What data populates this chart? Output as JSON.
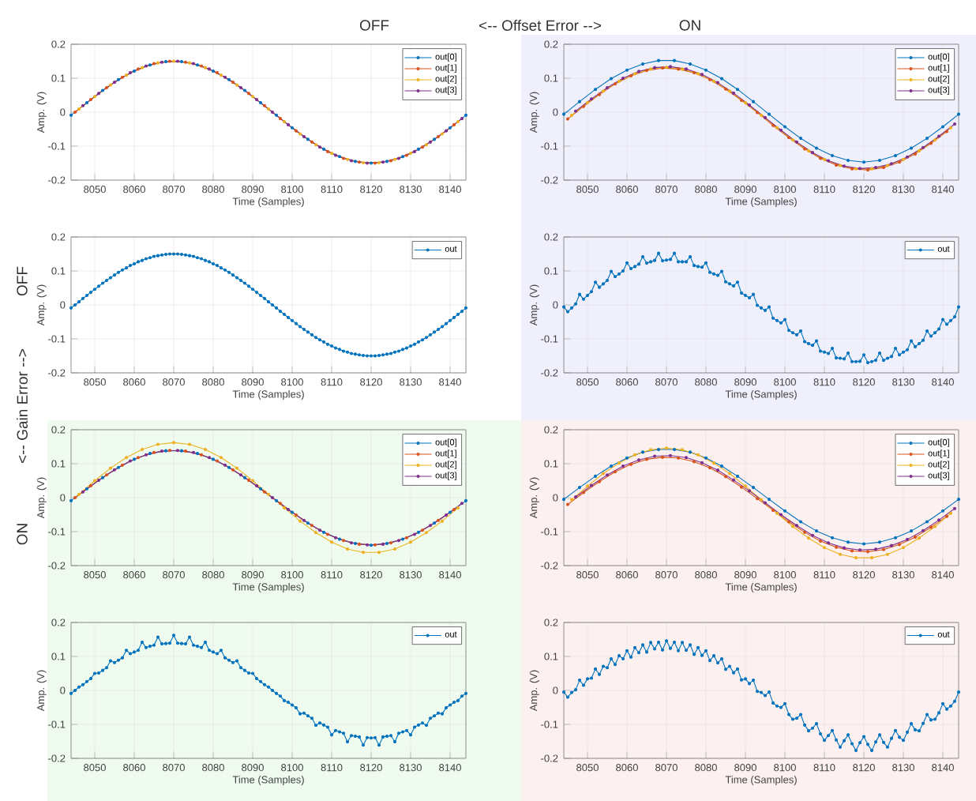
{
  "chart_data": [
    {
      "type": "line",
      "xlabel": "Time (Samples)",
      "ylabel": "Amp. (V)",
      "xlim": [
        8044,
        8144
      ],
      "ylim": [
        -0.2,
        0.2
      ],
      "xticks": [
        8050,
        8060,
        8070,
        8080,
        8090,
        8100,
        8110,
        8120,
        8130,
        8140
      ],
      "yticks": [
        -0.2,
        -0.1,
        0,
        0.1,
        0.2
      ],
      "grid": true,
      "legend": "top right",
      "marker": "circle",
      "annotations": [
        "OFF",
        "<--   Offset Error   -->",
        "ON",
        "OFF",
        "<--   Gain Error   -->",
        "ON"
      ],
      "series": [
        {
          "name": "out[0]",
          "color": "#0072bd",
          "x": [
            8044,
            8048,
            8052,
            8056,
            8060,
            8064,
            8068,
            8072,
            8076,
            8080,
            8084,
            8088,
            8092,
            8096,
            8100,
            8104,
            8108,
            8112,
            8116,
            8120,
            8124,
            8128,
            8132,
            8136,
            8140,
            8144
          ],
          "values": [
            -0.009,
            0.028,
            0.064,
            0.096,
            0.121,
            0.139,
            0.149,
            0.149,
            0.139,
            0.121,
            0.096,
            0.064,
            0.028,
            -0.009,
            -0.046,
            -0.08,
            -0.109,
            -0.131,
            -0.145,
            -0.15,
            -0.145,
            -0.131,
            -0.109,
            -0.08,
            -0.046,
            -0.009
          ]
        },
        {
          "name": "out[1]",
          "color": "#d95319",
          "x": [
            8045,
            8049,
            8053,
            8057,
            8061,
            8065,
            8069,
            8073,
            8077,
            8081,
            8085,
            8089,
            8093,
            8097,
            8101,
            8105,
            8109,
            8113,
            8117,
            8121,
            8125,
            8129,
            8133,
            8137,
            8141
          ],
          "values": [
            0,
            0.037,
            0.072,
            0.103,
            0.127,
            0.143,
            0.15,
            0.147,
            0.136,
            0.116,
            0.088,
            0.055,
            0.019,
            -0.019,
            -0.055,
            -0.088,
            -0.116,
            -0.136,
            -0.147,
            -0.15,
            -0.143,
            -0.127,
            -0.103,
            -0.072,
            -0.037
          ]
        },
        {
          "name": "out[2]",
          "color": "#edb120",
          "x": [
            8046,
            8050,
            8054,
            8058,
            8062,
            8066,
            8070,
            8074,
            8078,
            8082,
            8086,
            8090,
            8094,
            8098,
            8102,
            8106,
            8110,
            8114,
            8118,
            8122,
            8126,
            8130,
            8134,
            8138,
            8142
          ],
          "values": [
            0.009,
            0.046,
            0.08,
            0.109,
            0.131,
            0.145,
            0.15,
            0.145,
            0.131,
            0.109,
            0.08,
            0.046,
            0.009,
            -0.028,
            -0.064,
            -0.096,
            -0.121,
            -0.139,
            -0.149,
            -0.149,
            -0.139,
            -0.121,
            -0.096,
            -0.064,
            -0.028
          ]
        },
        {
          "name": "out[3]",
          "color": "#7e2f8e",
          "x": [
            8047,
            8051,
            8055,
            8059,
            8063,
            8067,
            8071,
            8075,
            8079,
            8083,
            8087,
            8091,
            8095,
            8099,
            8103,
            8107,
            8111,
            8115,
            8119,
            8123,
            8127,
            8131,
            8135,
            8139,
            8143
          ],
          "values": [
            0.019,
            0.055,
            0.088,
            0.116,
            0.136,
            0.147,
            0.15,
            0.143,
            0.127,
            0.103,
            0.072,
            0.037,
            0,
            -0.037,
            -0.072,
            -0.103,
            -0.127,
            -0.143,
            -0.15,
            -0.147,
            -0.136,
            -0.116,
            -0.088,
            -0.055,
            -0.019
          ]
        }
      ]
    },
    {
      "type": "line",
      "xlabel": "Time (Samples)",
      "ylabel": "Amp. (V)",
      "xlim": [
        8044,
        8144
      ],
      "ylim": [
        -0.2,
        0.2
      ],
      "xticks": [
        8050,
        8060,
        8070,
        8080,
        8090,
        8100,
        8110,
        8120,
        8130,
        8140
      ],
      "yticks": [
        -0.2,
        -0.1,
        0,
        0.1,
        0.2
      ],
      "grid": true,
      "legend": "top right",
      "marker": "circle",
      "series": [
        {
          "name": "out[0]",
          "color": "#0072bd",
          "x": [
            8044,
            8048,
            8052,
            8056,
            8060,
            8064,
            8068,
            8072,
            8076,
            8080,
            8084,
            8088,
            8092,
            8096,
            8100,
            8104,
            8108,
            8112,
            8116,
            8120,
            8124,
            8128,
            8132,
            8136,
            8140,
            8144
          ],
          "values": [
            -0.006,
            0.031,
            0.067,
            0.099,
            0.124,
            0.142,
            0.152,
            0.152,
            0.142,
            0.124,
            0.099,
            0.067,
            0.031,
            -0.006,
            -0.043,
            -0.077,
            -0.106,
            -0.128,
            -0.142,
            -0.147,
            -0.142,
            -0.128,
            -0.106,
            -0.077,
            -0.043,
            -0.006
          ]
        },
        {
          "name": "out[1]",
          "color": "#d95319",
          "x": [
            8045,
            8049,
            8053,
            8057,
            8061,
            8065,
            8069,
            8073,
            8077,
            8081,
            8085,
            8089,
            8093,
            8097,
            8101,
            8105,
            8109,
            8113,
            8117,
            8121,
            8125,
            8129,
            8133,
            8137,
            8141
          ],
          "values": [
            -0.02,
            0.017,
            0.052,
            0.083,
            0.107,
            0.123,
            0.13,
            0.127,
            0.116,
            0.096,
            0.068,
            0.035,
            -0.001,
            -0.039,
            -0.075,
            -0.108,
            -0.136,
            -0.156,
            -0.167,
            -0.17,
            -0.163,
            -0.147,
            -0.123,
            -0.092,
            -0.057
          ]
        },
        {
          "name": "out[2]",
          "color": "#edb120",
          "x": [
            8046,
            8050,
            8054,
            8058,
            8062,
            8066,
            8070,
            8074,
            8078,
            8082,
            8086,
            8090,
            8094,
            8098,
            8102,
            8106,
            8110,
            8114,
            8118,
            8122,
            8126,
            8130,
            8134,
            8138,
            8142
          ],
          "values": [
            -0.009,
            0.028,
            0.062,
            0.091,
            0.113,
            0.127,
            0.132,
            0.127,
            0.113,
            0.091,
            0.062,
            0.028,
            -0.009,
            -0.046,
            -0.082,
            -0.114,
            -0.139,
            -0.157,
            -0.167,
            -0.167,
            -0.157,
            -0.139,
            -0.114,
            -0.082,
            -0.046
          ]
        },
        {
          "name": "out[3]",
          "color": "#7e2f8e",
          "x": [
            8047,
            8051,
            8055,
            8059,
            8063,
            8067,
            8071,
            8075,
            8079,
            8083,
            8087,
            8091,
            8095,
            8099,
            8103,
            8107,
            8111,
            8115,
            8119,
            8123,
            8127,
            8131,
            8135,
            8139,
            8143
          ],
          "values": [
            0.003,
            0.039,
            0.072,
            0.1,
            0.12,
            0.131,
            0.134,
            0.127,
            0.111,
            0.087,
            0.056,
            0.021,
            -0.016,
            -0.053,
            -0.088,
            -0.119,
            -0.143,
            -0.159,
            -0.166,
            -0.163,
            -0.152,
            -0.132,
            -0.104,
            -0.071,
            -0.035
          ]
        }
      ]
    },
    {
      "type": "line",
      "xlabel": "Time (Samples)",
      "ylabel": "Amp. (V)",
      "xlim": [
        8044,
        8144
      ],
      "ylim": [
        -0.2,
        0.2
      ],
      "xticks": [
        8050,
        8060,
        8070,
        8080,
        8090,
        8100,
        8110,
        8120,
        8130,
        8140
      ],
      "yticks": [
        -0.2,
        -0.1,
        0,
        0.1,
        0.2
      ],
      "grid": true,
      "legend": "top right",
      "marker": "circle",
      "x": [
        8044,
        8045,
        8046,
        8047,
        8048,
        8049,
        8050,
        8051,
        8052,
        8053,
        8054,
        8055,
        8056,
        8057,
        8058,
        8059,
        8060,
        8061,
        8062,
        8063,
        8064,
        8065,
        8066,
        8067,
        8068,
        8069,
        8070,
        8071,
        8072,
        8073,
        8074,
        8075,
        8076,
        8077,
        8078,
        8079,
        8080,
        8081,
        8082,
        8083,
        8084,
        8085,
        8086,
        8087,
        8088,
        8089,
        8090,
        8091,
        8092,
        8093,
        8094,
        8095,
        8096,
        8097,
        8098,
        8099,
        8100,
        8101,
        8102,
        8103,
        8104,
        8105,
        8106,
        8107,
        8108,
        8109,
        8110,
        8111,
        8112,
        8113,
        8114,
        8115,
        8116,
        8117,
        8118,
        8119,
        8120,
        8121,
        8122,
        8123,
        8124,
        8125,
        8126,
        8127,
        8128,
        8129,
        8130,
        8131,
        8132,
        8133,
        8134,
        8135,
        8136,
        8137,
        8138,
        8139,
        8140,
        8141,
        8142,
        8143,
        8144
      ],
      "series": [
        {
          "name": "out",
          "color": "#0072bd",
          "values": [
            -0.009,
            0,
            0.009,
            0.019,
            0.028,
            0.037,
            0.046,
            0.055,
            0.064,
            0.072,
            0.08,
            0.088,
            0.096,
            0.103,
            0.109,
            0.116,
            0.121,
            0.127,
            0.131,
            0.136,
            0.139,
            0.143,
            0.145,
            0.147,
            0.149,
            0.15,
            0.15,
            0.15,
            0.149,
            0.147,
            0.145,
            0.143,
            0.139,
            0.136,
            0.131,
            0.127,
            0.121,
            0.116,
            0.109,
            0.103,
            0.096,
            0.088,
            0.08,
            0.072,
            0.064,
            0.055,
            0.046,
            0.037,
            0.028,
            0.019,
            0.009,
            0,
            -0.009,
            -0.019,
            -0.028,
            -0.037,
            -0.046,
            -0.055,
            -0.064,
            -0.072,
            -0.08,
            -0.088,
            -0.096,
            -0.103,
            -0.109,
            -0.116,
            -0.121,
            -0.127,
            -0.131,
            -0.136,
            -0.139,
            -0.143,
            -0.145,
            -0.147,
            -0.149,
            -0.15,
            -0.15,
            -0.15,
            -0.149,
            -0.147,
            -0.145,
            -0.143,
            -0.139,
            -0.136,
            -0.131,
            -0.127,
            -0.121,
            -0.116,
            -0.109,
            -0.103,
            -0.096,
            -0.088,
            -0.08,
            -0.072,
            -0.064,
            -0.055,
            -0.046,
            -0.037,
            -0.028,
            -0.019,
            -0.009
          ]
        }
      ]
    },
    {
      "type": "line",
      "xlabel": "Time (Samples)",
      "ylabel": "Amp. (V)",
      "xlim": [
        8044,
        8144
      ],
      "ylim": [
        -0.2,
        0.2
      ],
      "xticks": [
        8050,
        8060,
        8070,
        8080,
        8090,
        8100,
        8110,
        8120,
        8130,
        8140
      ],
      "yticks": [
        -0.2,
        -0.1,
        0,
        0.1,
        0.2
      ],
      "grid": true,
      "legend": "top right",
      "marker": "circle",
      "x": [
        8044,
        8045,
        8046,
        8047,
        8048,
        8049,
        8050,
        8051,
        8052,
        8053,
        8054,
        8055,
        8056,
        8057,
        8058,
        8059,
        8060,
        8061,
        8062,
        8063,
        8064,
        8065,
        8066,
        8067,
        8068,
        8069,
        8070,
        8071,
        8072,
        8073,
        8074,
        8075,
        8076,
        8077,
        8078,
        8079,
        8080,
        8081,
        8082,
        8083,
        8084,
        8085,
        8086,
        8087,
        8088,
        8089,
        8090,
        8091,
        8092,
        8093,
        8094,
        8095,
        8096,
        8097,
        8098,
        8099,
        8100,
        8101,
        8102,
        8103,
        8104,
        8105,
        8106,
        8107,
        8108,
        8109,
        8110,
        8111,
        8112,
        8113,
        8114,
        8115,
        8116,
        8117,
        8118,
        8119,
        8120,
        8121,
        8122,
        8123,
        8124,
        8125,
        8126,
        8127,
        8128,
        8129,
        8130,
        8131,
        8132,
        8133,
        8134,
        8135,
        8136,
        8137,
        8138,
        8139,
        8140,
        8141,
        8142,
        8143,
        8144
      ],
      "series": [
        {
          "name": "out",
          "color": "#0072bd",
          "values": [
            -0.006,
            -0.02,
            -0.009,
            0.003,
            0.031,
            0.017,
            0.028,
            0.039,
            0.067,
            0.052,
            0.062,
            0.072,
            0.099,
            0.083,
            0.091,
            0.1,
            0.124,
            0.107,
            0.113,
            0.12,
            0.142,
            0.123,
            0.127,
            0.131,
            0.152,
            0.13,
            0.132,
            0.134,
            0.152,
            0.127,
            0.127,
            0.127,
            0.142,
            0.116,
            0.113,
            0.111,
            0.124,
            0.096,
            0.091,
            0.087,
            0.099,
            0.068,
            0.062,
            0.056,
            0.067,
            0.035,
            0.028,
            0.021,
            0.031,
            -0.001,
            -0.009,
            -0.016,
            -0.006,
            -0.039,
            -0.046,
            -0.053,
            -0.043,
            -0.075,
            -0.082,
            -0.088,
            -0.077,
            -0.108,
            -0.114,
            -0.119,
            -0.106,
            -0.136,
            -0.139,
            -0.143,
            -0.128,
            -0.156,
            -0.157,
            -0.159,
            -0.142,
            -0.167,
            -0.167,
            -0.166,
            -0.147,
            -0.17,
            -0.167,
            -0.163,
            -0.142,
            -0.163,
            -0.157,
            -0.152,
            -0.128,
            -0.147,
            -0.139,
            -0.132,
            -0.106,
            -0.123,
            -0.114,
            -0.104,
            -0.077,
            -0.092,
            -0.082,
            -0.071,
            -0.043,
            -0.057,
            -0.046,
            -0.035,
            -0.006
          ]
        }
      ]
    },
    {
      "type": "line",
      "xlabel": "Time (Samples)",
      "ylabel": "Amp. (V)",
      "xlim": [
        8044,
        8144
      ],
      "ylim": [
        -0.2,
        0.2
      ],
      "xticks": [
        8050,
        8060,
        8070,
        8080,
        8090,
        8100,
        8110,
        8120,
        8130,
        8140
      ],
      "yticks": [
        -0.2,
        -0.1,
        0,
        0.1,
        0.2
      ],
      "grid": true,
      "legend": "top right",
      "marker": "circle",
      "series": [
        {
          "name": "out[0]",
          "color": "#0072bd",
          "x": [
            8044,
            8048,
            8052,
            8056,
            8060,
            8064,
            8068,
            8072,
            8076,
            8080,
            8084,
            8088,
            8092,
            8096,
            8100,
            8104,
            8108,
            8112,
            8116,
            8120,
            8124,
            8128,
            8132,
            8136,
            8140,
            8144
          ],
          "values": [
            -0.009,
            0.026,
            0.059,
            0.089,
            0.113,
            0.13,
            0.138,
            0.138,
            0.13,
            0.113,
            0.089,
            0.059,
            0.026,
            -0.009,
            -0.043,
            -0.075,
            -0.102,
            -0.122,
            -0.135,
            -0.14,
            -0.135,
            -0.122,
            -0.102,
            -0.075,
            -0.043,
            -0.009
          ]
        },
        {
          "name": "out[1]",
          "color": "#d95319",
          "x": [
            8045,
            8049,
            8053,
            8057,
            8061,
            8065,
            8069,
            8073,
            8077,
            8081,
            8085,
            8089,
            8093,
            8097,
            8101,
            8105,
            8109,
            8113,
            8117,
            8121,
            8125,
            8129,
            8133,
            8137,
            8141
          ],
          "values": [
            0,
            0.035,
            0.067,
            0.096,
            0.118,
            0.133,
            0.139,
            0.137,
            0.126,
            0.108,
            0.082,
            0.051,
            0.017,
            -0.017,
            -0.051,
            -0.082,
            -0.108,
            -0.126,
            -0.137,
            -0.139,
            -0.133,
            -0.118,
            -0.096,
            -0.067,
            -0.035
          ]
        },
        {
          "name": "out[2]",
          "color": "#edb120",
          "x": [
            8046,
            8050,
            8054,
            8058,
            8062,
            8066,
            8070,
            8074,
            8078,
            8082,
            8086,
            8090,
            8094,
            8098,
            8102,
            8106,
            8110,
            8114,
            8118,
            8122,
            8126,
            8130,
            8134,
            8138,
            8142
          ],
          "values": [
            0.01,
            0.05,
            0.087,
            0.118,
            0.142,
            0.157,
            0.162,
            0.157,
            0.142,
            0.118,
            0.087,
            0.05,
            0.01,
            -0.03,
            -0.069,
            -0.103,
            -0.131,
            -0.151,
            -0.161,
            -0.161,
            -0.151,
            -0.131,
            -0.103,
            -0.069,
            -0.03
          ]
        },
        {
          "name": "out[3]",
          "color": "#7e2f8e",
          "x": [
            8047,
            8051,
            8055,
            8059,
            8063,
            8067,
            8071,
            8075,
            8079,
            8083,
            8087,
            8091,
            8095,
            8099,
            8103,
            8107,
            8111,
            8115,
            8119,
            8123,
            8127,
            8131,
            8135,
            8139,
            8143
          ],
          "values": [
            0.017,
            0.051,
            0.082,
            0.108,
            0.126,
            0.137,
            0.139,
            0.133,
            0.118,
            0.096,
            0.067,
            0.035,
            0,
            -0.035,
            -0.067,
            -0.096,
            -0.118,
            -0.133,
            -0.139,
            -0.137,
            -0.126,
            -0.108,
            -0.082,
            -0.051,
            -0.017
          ]
        }
      ]
    },
    {
      "type": "line",
      "xlabel": "Time (Samples)",
      "ylabel": "Amp. (V)",
      "xlim": [
        8044,
        8144
      ],
      "ylim": [
        -0.2,
        0.2
      ],
      "xticks": [
        8050,
        8060,
        8070,
        8080,
        8090,
        8100,
        8110,
        8120,
        8130,
        8140
      ],
      "yticks": [
        -0.2,
        -0.1,
        0,
        0.1,
        0.2
      ],
      "grid": true,
      "legend": "top right",
      "marker": "circle",
      "series": [
        {
          "name": "out[0]",
          "color": "#0072bd",
          "x": [
            8044,
            8048,
            8052,
            8056,
            8060,
            8064,
            8068,
            8072,
            8076,
            8080,
            8084,
            8088,
            8092,
            8096,
            8100,
            8104,
            8108,
            8112,
            8116,
            8120,
            8124,
            8128,
            8132,
            8136,
            8140,
            8144
          ],
          "values": [
            -0.005,
            0.03,
            0.063,
            0.093,
            0.117,
            0.134,
            0.142,
            0.142,
            0.134,
            0.117,
            0.093,
            0.063,
            0.03,
            -0.005,
            -0.039,
            -0.071,
            -0.098,
            -0.118,
            -0.131,
            -0.136,
            -0.131,
            -0.118,
            -0.098,
            -0.071,
            -0.039,
            -0.005
          ]
        },
        {
          "name": "out[1]",
          "color": "#d95319",
          "x": [
            8045,
            8049,
            8053,
            8057,
            8061,
            8065,
            8069,
            8073,
            8077,
            8081,
            8085,
            8089,
            8093,
            8097,
            8101,
            8105,
            8109,
            8113,
            8117,
            8121,
            8125,
            8129,
            8133,
            8137,
            8141
          ],
          "values": [
            -0.02,
            0.015,
            0.047,
            0.076,
            0.098,
            0.113,
            0.119,
            0.117,
            0.106,
            0.088,
            0.062,
            0.031,
            -0.003,
            -0.037,
            -0.071,
            -0.102,
            -0.128,
            -0.146,
            -0.157,
            -0.159,
            -0.153,
            -0.138,
            -0.116,
            -0.087,
            -0.055
          ]
        },
        {
          "name": "out[2]",
          "color": "#edb120",
          "x": [
            8046,
            8050,
            8054,
            8058,
            8062,
            8066,
            8070,
            8074,
            8078,
            8082,
            8086,
            8090,
            8094,
            8098,
            8102,
            8106,
            8110,
            8114,
            8118,
            8122,
            8126,
            8130,
            8134,
            8138,
            8142
          ],
          "values": [
            -0.006,
            0.034,
            0.071,
            0.102,
            0.126,
            0.141,
            0.146,
            0.141,
            0.126,
            0.102,
            0.071,
            0.034,
            -0.006,
            -0.046,
            -0.085,
            -0.119,
            -0.147,
            -0.167,
            -0.177,
            -0.177,
            -0.167,
            -0.147,
            -0.119,
            -0.085,
            -0.046
          ]
        },
        {
          "name": "out[3]",
          "color": "#7e2f8e",
          "x": [
            8047,
            8051,
            8055,
            8059,
            8063,
            8067,
            8071,
            8075,
            8079,
            8083,
            8087,
            8091,
            8095,
            8099,
            8103,
            8107,
            8111,
            8115,
            8119,
            8123,
            8127,
            8131,
            8135,
            8139,
            8143
          ],
          "values": [
            0.002,
            0.036,
            0.067,
            0.093,
            0.111,
            0.122,
            0.124,
            0.118,
            0.103,
            0.081,
            0.052,
            0.02,
            -0.015,
            -0.05,
            -0.082,
            -0.111,
            -0.133,
            -0.148,
            -0.154,
            -0.152,
            -0.141,
            -0.123,
            -0.097,
            -0.066,
            -0.032
          ]
        }
      ]
    },
    {
      "type": "line",
      "xlabel": "Time (Samples)",
      "ylabel": "Amp. (V)",
      "xlim": [
        8044,
        8144
      ],
      "ylim": [
        -0.2,
        0.2
      ],
      "xticks": [
        8050,
        8060,
        8070,
        8080,
        8090,
        8100,
        8110,
        8120,
        8130,
        8140
      ],
      "yticks": [
        -0.2,
        -0.1,
        0,
        0.1,
        0.2
      ],
      "grid": true,
      "legend": "top right",
      "marker": "circle",
      "x": [
        8044,
        8045,
        8046,
        8047,
        8048,
        8049,
        8050,
        8051,
        8052,
        8053,
        8054,
        8055,
        8056,
        8057,
        8058,
        8059,
        8060,
        8061,
        8062,
        8063,
        8064,
        8065,
        8066,
        8067,
        8068,
        8069,
        8070,
        8071,
        8072,
        8073,
        8074,
        8075,
        8076,
        8077,
        8078,
        8079,
        8080,
        8081,
        8082,
        8083,
        8084,
        8085,
        8086,
        8087,
        8088,
        8089,
        8090,
        8091,
        8092,
        8093,
        8094,
        8095,
        8096,
        8097,
        8098,
        8099,
        8100,
        8101,
        8102,
        8103,
        8104,
        8105,
        8106,
        8107,
        8108,
        8109,
        8110,
        8111,
        8112,
        8113,
        8114,
        8115,
        8116,
        8117,
        8118,
        8119,
        8120,
        8121,
        8122,
        8123,
        8124,
        8125,
        8126,
        8127,
        8128,
        8129,
        8130,
        8131,
        8132,
        8133,
        8134,
        8135,
        8136,
        8137,
        8138,
        8139,
        8140,
        8141,
        8142,
        8143,
        8144
      ],
      "series": [
        {
          "name": "out",
          "color": "#0072bd",
          "values": [
            -0.009,
            0,
            0.01,
            0.017,
            0.026,
            0.035,
            0.05,
            0.051,
            0.059,
            0.067,
            0.087,
            0.082,
            0.089,
            0.096,
            0.118,
            0.108,
            0.113,
            0.118,
            0.142,
            0.126,
            0.13,
            0.133,
            0.157,
            0.137,
            0.138,
            0.139,
            0.162,
            0.139,
            0.138,
            0.137,
            0.157,
            0.133,
            0.13,
            0.126,
            0.142,
            0.118,
            0.113,
            0.108,
            0.118,
            0.096,
            0.089,
            0.082,
            0.087,
            0.067,
            0.059,
            0.051,
            0.05,
            0.035,
            0.026,
            0.017,
            0.01,
            0,
            -0.009,
            -0.017,
            -0.03,
            -0.035,
            -0.043,
            -0.051,
            -0.069,
            -0.067,
            -0.075,
            -0.082,
            -0.103,
            -0.096,
            -0.102,
            -0.108,
            -0.131,
            -0.118,
            -0.122,
            -0.126,
            -0.151,
            -0.133,
            -0.135,
            -0.137,
            -0.161,
            -0.139,
            -0.14,
            -0.139,
            -0.161,
            -0.137,
            -0.135,
            -0.133,
            -0.151,
            -0.126,
            -0.122,
            -0.118,
            -0.131,
            -0.108,
            -0.102,
            -0.096,
            -0.103,
            -0.082,
            -0.075,
            -0.067,
            -0.069,
            -0.051,
            -0.043,
            -0.035,
            -0.03,
            -0.017,
            -0.009
          ]
        }
      ]
    },
    {
      "type": "line",
      "xlabel": "Time (Samples)",
      "ylabel": "Amp. (V)",
      "xlim": [
        8044,
        8144
      ],
      "ylim": [
        -0.2,
        0.2
      ],
      "xticks": [
        8050,
        8060,
        8070,
        8080,
        8090,
        8100,
        8110,
        8120,
        8130,
        8140
      ],
      "yticks": [
        -0.2,
        -0.1,
        0,
        0.1,
        0.2
      ],
      "grid": true,
      "legend": "top right",
      "marker": "circle",
      "x": [
        8044,
        8045,
        8046,
        8047,
        8048,
        8049,
        8050,
        8051,
        8052,
        8053,
        8054,
        8055,
        8056,
        8057,
        8058,
        8059,
        8060,
        8061,
        8062,
        8063,
        8064,
        8065,
        8066,
        8067,
        8068,
        8069,
        8070,
        8071,
        8072,
        8073,
        8074,
        8075,
        8076,
        8077,
        8078,
        8079,
        8080,
        8081,
        8082,
        8083,
        8084,
        8085,
        8086,
        8087,
        8088,
        8089,
        8090,
        8091,
        8092,
        8093,
        8094,
        8095,
        8096,
        8097,
        8098,
        8099,
        8100,
        8101,
        8102,
        8103,
        8104,
        8105,
        8106,
        8107,
        8108,
        8109,
        8110,
        8111,
        8112,
        8113,
        8114,
        8115,
        8116,
        8117,
        8118,
        8119,
        8120,
        8121,
        8122,
        8123,
        8124,
        8125,
        8126,
        8127,
        8128,
        8129,
        8130,
        8131,
        8132,
        8133,
        8134,
        8135,
        8136,
        8137,
        8138,
        8139,
        8140,
        8141,
        8142,
        8143,
        8144
      ],
      "series": [
        {
          "name": "out",
          "color": "#0072bd",
          "values": [
            -0.005,
            -0.02,
            -0.006,
            0.002,
            0.03,
            0.015,
            0.034,
            0.036,
            0.063,
            0.047,
            0.071,
            0.067,
            0.093,
            0.076,
            0.102,
            0.093,
            0.117,
            0.098,
            0.126,
            0.111,
            0.134,
            0.113,
            0.141,
            0.122,
            0.142,
            0.119,
            0.146,
            0.124,
            0.142,
            0.117,
            0.141,
            0.118,
            0.134,
            0.106,
            0.126,
            0.103,
            0.117,
            0.088,
            0.102,
            0.081,
            0.093,
            0.062,
            0.071,
            0.052,
            0.063,
            0.031,
            0.034,
            0.02,
            0.03,
            -0.003,
            -0.006,
            -0.015,
            -0.005,
            -0.037,
            -0.046,
            -0.05,
            -0.039,
            -0.071,
            -0.085,
            -0.082,
            -0.071,
            -0.102,
            -0.119,
            -0.111,
            -0.098,
            -0.128,
            -0.147,
            -0.133,
            -0.118,
            -0.146,
            -0.167,
            -0.148,
            -0.131,
            -0.157,
            -0.177,
            -0.154,
            -0.136,
            -0.159,
            -0.177,
            -0.152,
            -0.131,
            -0.153,
            -0.167,
            -0.141,
            -0.118,
            -0.138,
            -0.147,
            -0.123,
            -0.098,
            -0.116,
            -0.119,
            -0.097,
            -0.071,
            -0.087,
            -0.085,
            -0.066,
            -0.039,
            -0.055,
            -0.046,
            -0.032,
            -0.005
          ]
        }
      ]
    }
  ]
}
